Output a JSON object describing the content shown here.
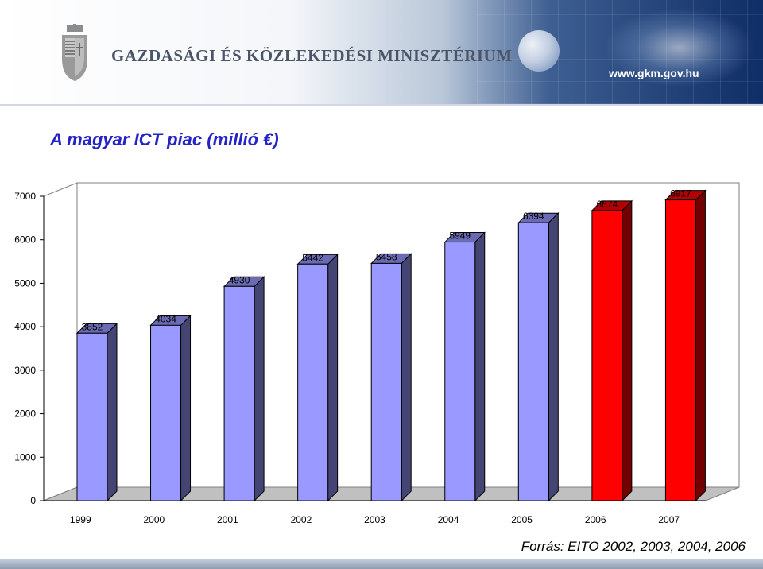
{
  "header": {
    "ministry_name": "GAZDASÁGI ÉS KÖZLEKEDÉSI MINISZTÉRIUM",
    "website": "www.gkm.gov.hu"
  },
  "title": "A magyar ICT piac (millió €)",
  "source_note": "Forrás: EITO 2002, 2003, 2004, 2006",
  "colors": {
    "historical_bar": "#9999ff",
    "forecast_bar": "#ff0000",
    "title": "#2323c8"
  },
  "chart_data": {
    "type": "bar",
    "style": "3d-columns",
    "categories": [
      "1999",
      "2000",
      "2001",
      "2002",
      "2003",
      "2004",
      "2005",
      "2006",
      "2007"
    ],
    "values": [
      3852,
      4034,
      4930,
      5442,
      5458,
      5949,
      6394,
      6674,
      6917
    ],
    "bar_colors": [
      "#9999ff",
      "#9999ff",
      "#9999ff",
      "#9999ff",
      "#9999ff",
      "#9999ff",
      "#9999ff",
      "#ff0000",
      "#ff0000"
    ],
    "data_labels": [
      "3852",
      "4034",
      "4930",
      "5442",
      "5458",
      "5949",
      "6394",
      "6674",
      "6917"
    ],
    "yticks": [
      0,
      1000,
      2000,
      3000,
      4000,
      5000,
      6000,
      7000
    ],
    "ylim": [
      0,
      7000
    ],
    "grid": false,
    "legend": "none"
  }
}
